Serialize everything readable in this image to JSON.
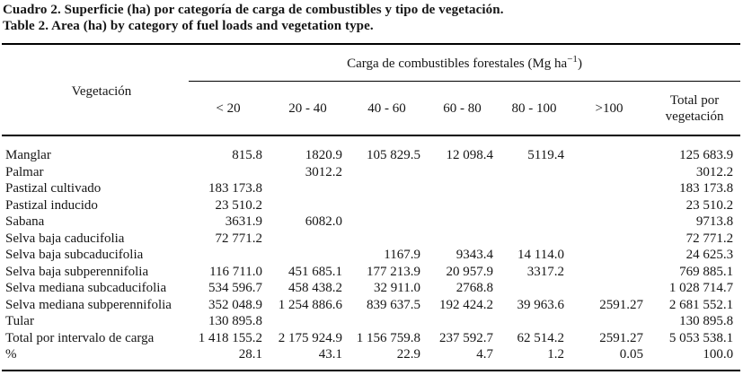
{
  "caption_es": "Cuadro 2. Superficie (ha) por categoría de carga de combustibles y tipo de vegetación.",
  "caption_en": "Table 2. Area (ha) by category of fuel loads and vegetation type.",
  "table": {
    "vegetation_header": "Vegetación",
    "span_header": {
      "prefix": "Carga de combustibles forestales (Mg ha",
      "sup": "−1",
      "suffix": ")"
    },
    "columns": [
      "< 20",
      "20 - 40",
      "40 - 60",
      "60 - 80",
      "80 - 100",
      ">100",
      "Total por vegetación"
    ],
    "rows": [
      {
        "label": "Manglar",
        "values": [
          "815.8",
          "1820.9",
          "105 829.5",
          "12 098.4",
          "5119.4",
          "",
          "125 683.9"
        ]
      },
      {
        "label": "Palmar",
        "values": [
          "",
          "3012.2",
          "",
          "",
          "",
          "",
          "3012.2"
        ]
      },
      {
        "label": "Pastizal cultivado",
        "values": [
          "183 173.8",
          "",
          "",
          "",
          "",
          "",
          "183 173.8"
        ]
      },
      {
        "label": "Pastizal inducido",
        "values": [
          "23 510.2",
          "",
          "",
          "",
          "",
          "",
          "23 510.2"
        ]
      },
      {
        "label": "Sabana",
        "values": [
          "3631.9",
          "6082.0",
          "",
          "",
          "",
          "",
          "9713.8"
        ]
      },
      {
        "label": "Selva baja caducifolia",
        "values": [
          "72 771.2",
          "",
          "",
          "",
          "",
          "",
          "72 771.2"
        ]
      },
      {
        "label": "Selva baja subcaducifolia",
        "values": [
          "",
          "",
          "1167.9",
          "9343.4",
          "14 114.0",
          "",
          "24 625.3"
        ]
      },
      {
        "label": "Selva baja subperennifolia",
        "values": [
          "116 711.0",
          "451 685.1",
          "177 213.9",
          "20 957.9",
          "3317.2",
          "",
          "769 885.1"
        ]
      },
      {
        "label": "Selva mediana subcaducifolia",
        "values": [
          "534 596.7",
          "458 438.2",
          "32 911.0",
          "2768.8",
          "",
          "",
          "1 028 714.7"
        ]
      },
      {
        "label": "Selva mediana subperennifolia",
        "values": [
          "352 048.9",
          "1 254 886.6",
          "839 637.5",
          "192 424.2",
          "39 963.6",
          "2591.27",
          "2 681 552.1"
        ]
      },
      {
        "label": "Tular",
        "values": [
          "130 895.8",
          "",
          "",
          "",
          "",
          "",
          "130 895.8"
        ]
      },
      {
        "label": "Total por intervalo de carga",
        "values": [
          "1 418 155.2",
          "2 175 924.9",
          "1 156 759.8",
          "237 592.7",
          "62 514.2",
          "2591.27",
          "5 053 538.1"
        ]
      },
      {
        "label": "%",
        "values": [
          "28.1",
          "43.1",
          "22.9",
          "4.7",
          "1.2",
          "0.05",
          "100.0"
        ]
      }
    ]
  }
}
